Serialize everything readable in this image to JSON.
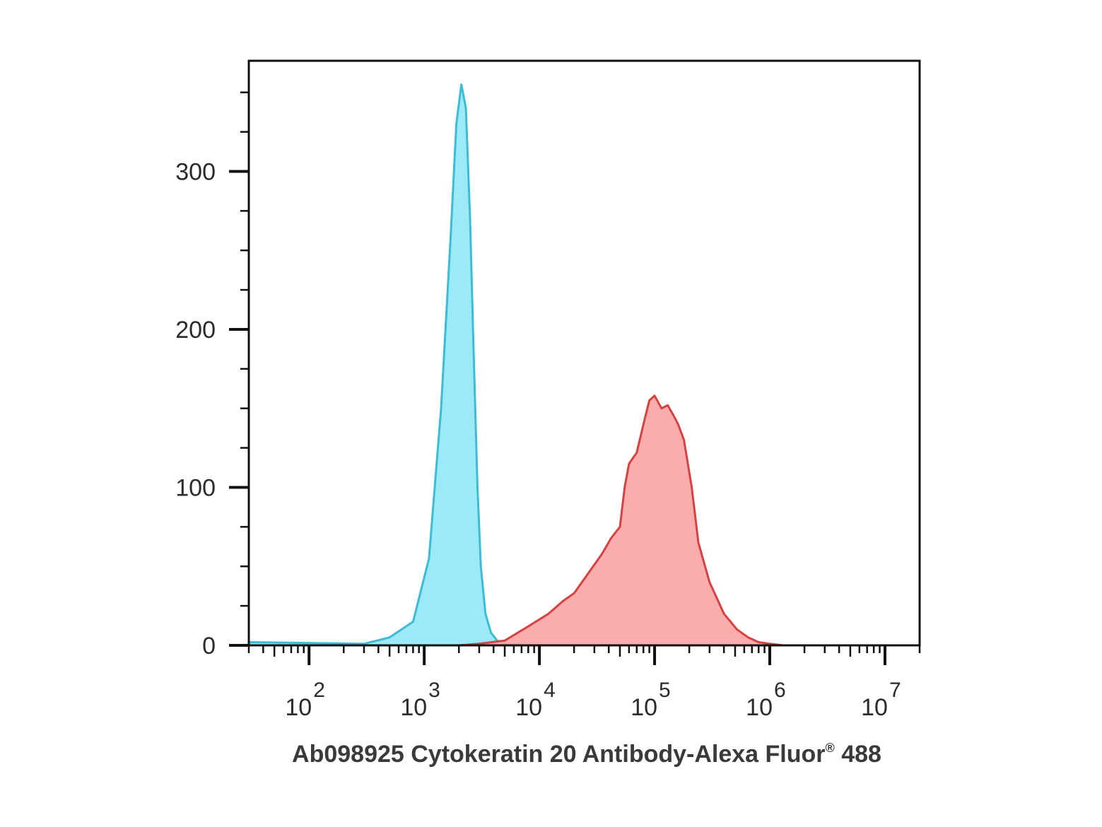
{
  "chart_data": {
    "type": "area",
    "xscale": "log",
    "xlim": [
      30,
      20000000
    ],
    "ylim": [
      0,
      370
    ],
    "yticks": [
      {
        "value": 0,
        "label": "0"
      },
      {
        "value": 100,
        "label": "100"
      },
      {
        "value": 200,
        "label": "200"
      },
      {
        "value": 300,
        "label": "300"
      }
    ],
    "xticks": [
      {
        "value": 100,
        "base": "10",
        "exp": "2"
      },
      {
        "value": 1000,
        "base": "10",
        "exp": "3"
      },
      {
        "value": 10000,
        "base": "10",
        "exp": "4"
      },
      {
        "value": 100000,
        "base": "10",
        "exp": "5"
      },
      {
        "value": 1000000,
        "base": "10",
        "exp": "6"
      },
      {
        "value": 10000000,
        "base": "10",
        "exp": "7"
      }
    ],
    "series": [
      {
        "color_fill": "#9ce9f7",
        "color_line": "#3cbdd3",
        "x": [
          30,
          300,
          500,
          800,
          1100,
          1400,
          1700,
          1900,
          2100,
          2300,
          2500,
          2700,
          2900,
          3100,
          3400,
          3800,
          4300,
          5000,
          6000,
          8000,
          20000000
        ],
        "y": [
          2,
          1,
          5,
          15,
          55,
          150,
          260,
          330,
          355,
          340,
          270,
          180,
          100,
          50,
          20,
          8,
          3,
          1,
          1,
          0,
          0
        ]
      },
      {
        "color_fill": "#fba6a6",
        "color_line": "#d64141",
        "x": [
          1000,
          2000,
          3000,
          5000,
          8000,
          12000,
          16000,
          20000,
          28000,
          35000,
          42000,
          50000,
          55000,
          60000,
          70000,
          80000,
          90000,
          100000,
          115000,
          130000,
          145000,
          160000,
          180000,
          210000,
          240000,
          300000,
          400000,
          520000,
          650000,
          800000,
          1000000,
          1300000,
          2000000
        ],
        "y": [
          0,
          0,
          1,
          3,
          12,
          20,
          28,
          33,
          48,
          58,
          68,
          75,
          100,
          115,
          122,
          140,
          155,
          158,
          150,
          152,
          146,
          140,
          130,
          100,
          65,
          40,
          20,
          10,
          5,
          2,
          1,
          0,
          0
        ]
      }
    ]
  },
  "caption": {
    "main": "Ab098925 Cytokeratin 20 Antibody-Alexa Fluor",
    "reg": "®",
    "suffix": " 488"
  }
}
